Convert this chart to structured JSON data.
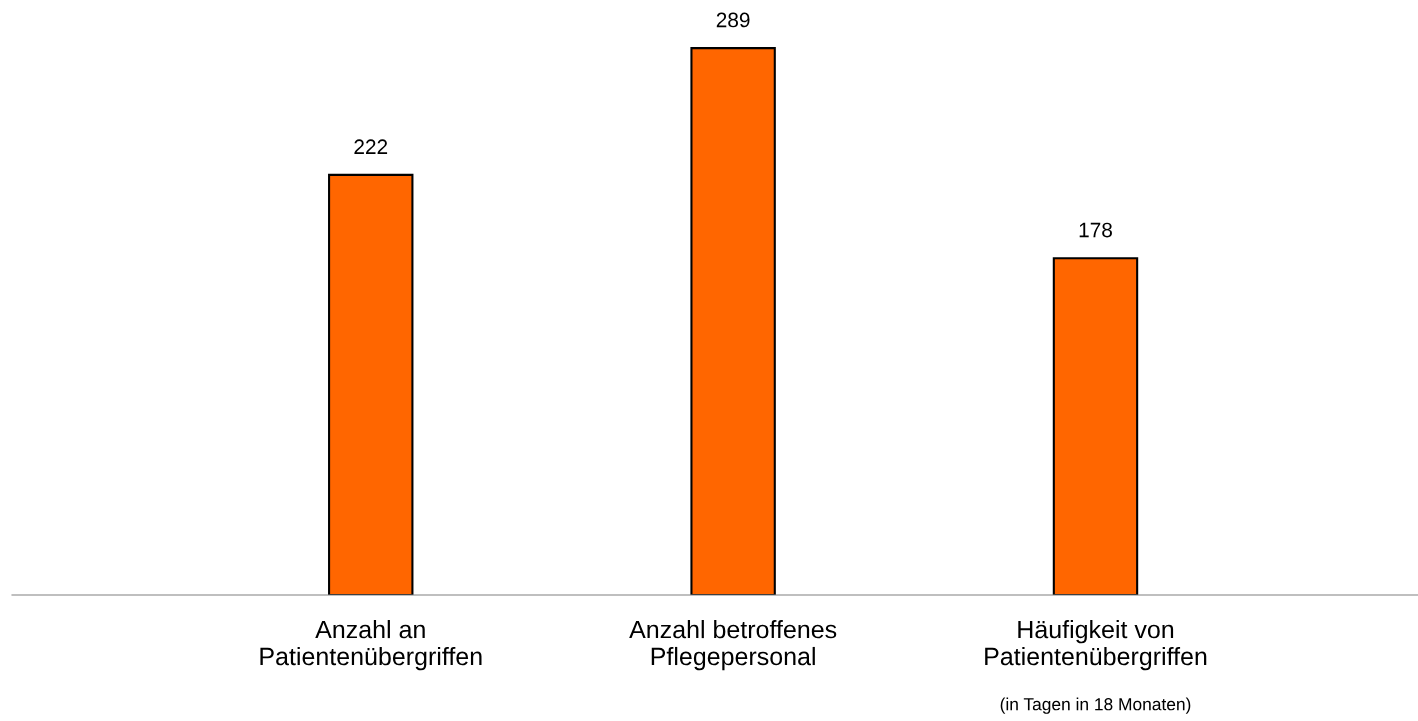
{
  "chart_data": {
    "type": "bar",
    "categories": [
      "Anzahl an\nPatientenübergriffen",
      "Anzahl betroffenes\nPflegepersonal",
      "Häufigkeit von\nPatientenübergriffen"
    ],
    "values": [
      222,
      289,
      178
    ],
    "color": "#ff6600",
    "data_labels": true,
    "grid": false,
    "legend": false,
    "tick_labels": "x",
    "annotations": [
      "(in Tagen in 18 Monaten)"
    ]
  }
}
